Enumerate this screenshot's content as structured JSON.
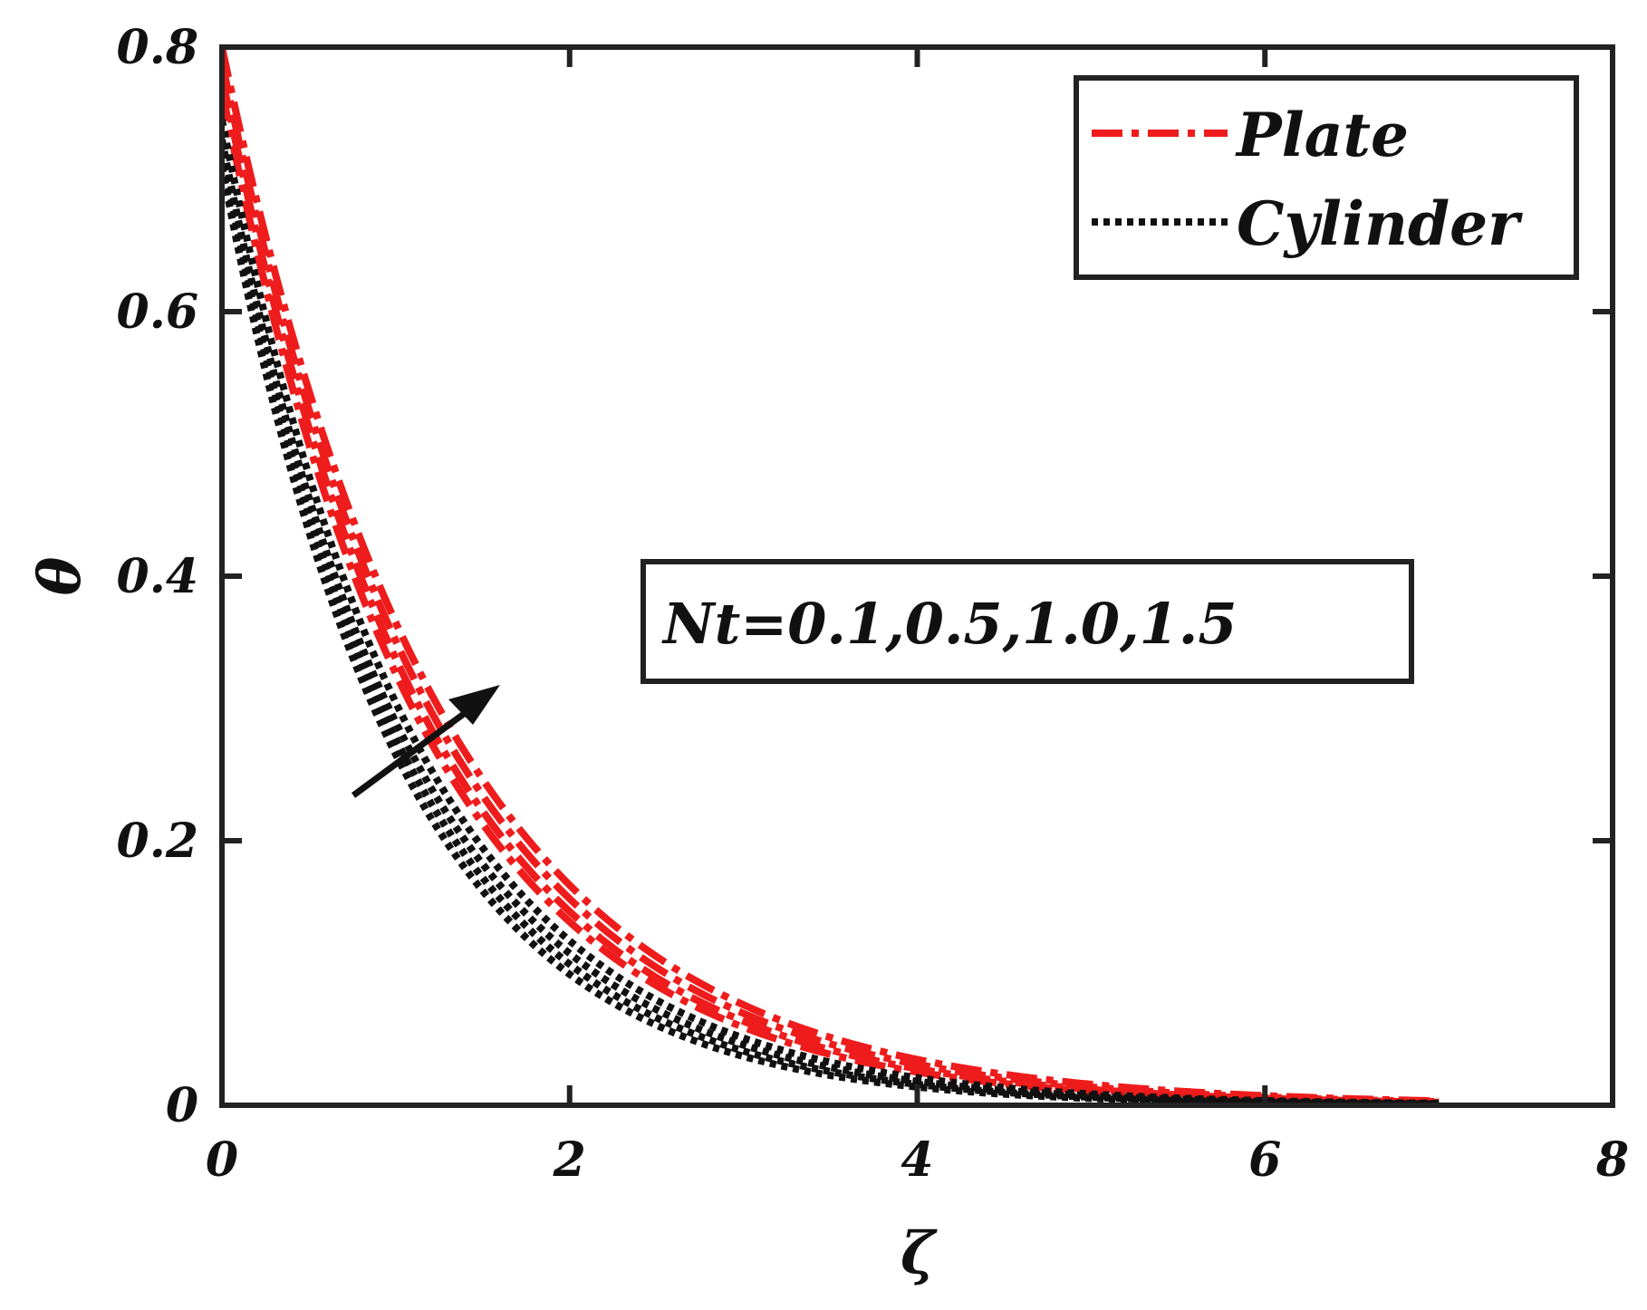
{
  "chart_data": {
    "type": "line",
    "title": "",
    "xlabel": "ζ",
    "ylabel": "θ",
    "xlim": [
      0,
      8
    ],
    "ylim": [
      0,
      0.8
    ],
    "xticks": [
      0,
      2,
      4,
      6,
      8
    ],
    "yticks": [
      0,
      0.2,
      0.4,
      0.6,
      0.8
    ],
    "xtick_labels": [
      "0",
      "2",
      "4",
      "6",
      "8"
    ],
    "ytick_labels": [
      "0",
      "0.2",
      "0.4",
      "0.6",
      "0.8"
    ],
    "grid": false,
    "legend": {
      "position": "top-right",
      "entries": [
        {
          "label": "Plate",
          "color": "#ee1c1c",
          "style": "dash-dot"
        },
        {
          "label": "Cylinder",
          "color": "#111111",
          "style": "dotted"
        }
      ]
    },
    "annotation": {
      "text": "Nt=0.1,0.5,1.0,1.5",
      "arrow_direction": "increasing"
    },
    "series": [
      {
        "name": "Plate, Nt=0.1",
        "group": "Plate",
        "nt": 0.1,
        "color": "#ee1c1c",
        "style": "dash-dot",
        "y0": 0.767,
        "decay": 0.855,
        "x_end": 7
      },
      {
        "name": "Plate, Nt=0.5",
        "group": "Plate",
        "nt": 0.5,
        "color": "#ee1c1c",
        "style": "dash-dot",
        "y0": 0.778,
        "decay": 0.835,
        "x_end": 7
      },
      {
        "name": "Plate, Nt=1.0",
        "group": "Plate",
        "nt": 1.0,
        "color": "#ee1c1c",
        "style": "dash-dot",
        "y0": 0.789,
        "decay": 0.81,
        "x_end": 7
      },
      {
        "name": "Plate, Nt=1.5",
        "group": "Plate",
        "nt": 1.5,
        "color": "#ee1c1c",
        "style": "dash-dot",
        "y0": 0.8,
        "decay": 0.785,
        "x_end": 7
      },
      {
        "name": "Cylinder, Nt=0.1",
        "group": "Cylinder",
        "nt": 0.1,
        "color": "#111111",
        "style": "dotted",
        "y0": 0.71,
        "decay": 0.985,
        "x_end": 7
      },
      {
        "name": "Cylinder, Nt=0.5",
        "group": "Cylinder",
        "nt": 0.5,
        "color": "#111111",
        "style": "dotted",
        "y0": 0.72,
        "decay": 0.955,
        "x_end": 7
      },
      {
        "name": "Cylinder, Nt=1.0",
        "group": "Cylinder",
        "nt": 1.0,
        "color": "#111111",
        "style": "dotted",
        "y0": 0.73,
        "decay": 0.925,
        "x_end": 7
      },
      {
        "name": "Cylinder, Nt=1.5",
        "group": "Cylinder",
        "nt": 1.5,
        "color": "#111111",
        "style": "dotted",
        "y0": 0.745,
        "decay": 0.895,
        "x_end": 7
      }
    ]
  }
}
